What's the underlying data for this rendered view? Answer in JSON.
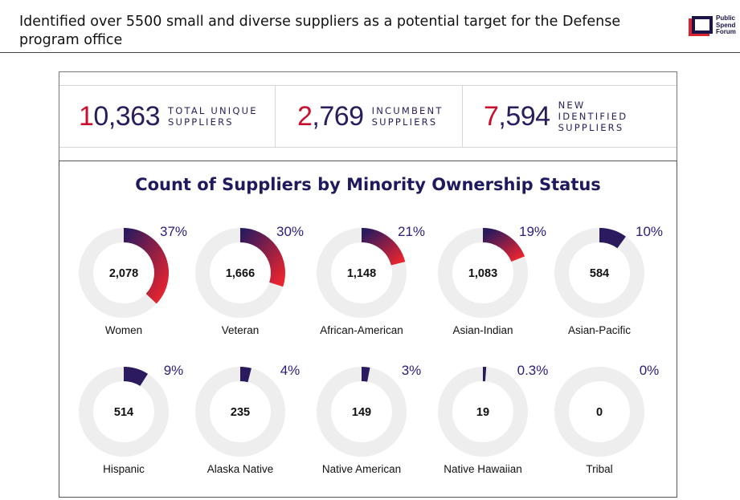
{
  "slide": {
    "title": "Identified over 5500 small and diverse suppliers as a potential target for the Defense program office"
  },
  "logo": {
    "lines": [
      "Public",
      "Spend",
      "Forum"
    ],
    "colors": {
      "red": "#d9232e",
      "navy": "#1a1448"
    }
  },
  "stats": [
    {
      "value": "10,363",
      "label": "TOTAL UNIQUE SUPPLIERS"
    },
    {
      "value": "2,769",
      "label": "INCUMBENT SUPPLIERS"
    },
    {
      "value": "7,594",
      "label": "NEW IDENTIFIED SUPPLIERS"
    }
  ],
  "chart_data": {
    "type": "donut",
    "title": "Count of Suppliers by Minority Ownership Status",
    "colors": {
      "start": "#2b1a5e",
      "end": "#e8242f",
      "track": "#eeeeee"
    },
    "categories": [
      "Women",
      "Veteran",
      "African-American",
      "Asian-Indian",
      "Asian-Pacific",
      "Hispanic",
      "Alaska Native",
      "Native American",
      "Native Hawaiian",
      "Tribal"
    ],
    "counts": [
      2078,
      1666,
      1148,
      1083,
      584,
      514,
      235,
      149,
      19,
      0
    ],
    "count_labels": [
      "2,078",
      "1,666",
      "1,148",
      "1,083",
      "584",
      "514",
      "235",
      "149",
      "19",
      "0"
    ],
    "percents": [
      37,
      30,
      21,
      19,
      10,
      9,
      4,
      3,
      0.3,
      0
    ],
    "percent_labels": [
      "37%",
      "30%",
      "21%",
      "19%",
      "10%",
      "9%",
      "4%",
      "3%",
      "0.3%",
      "0%"
    ]
  }
}
